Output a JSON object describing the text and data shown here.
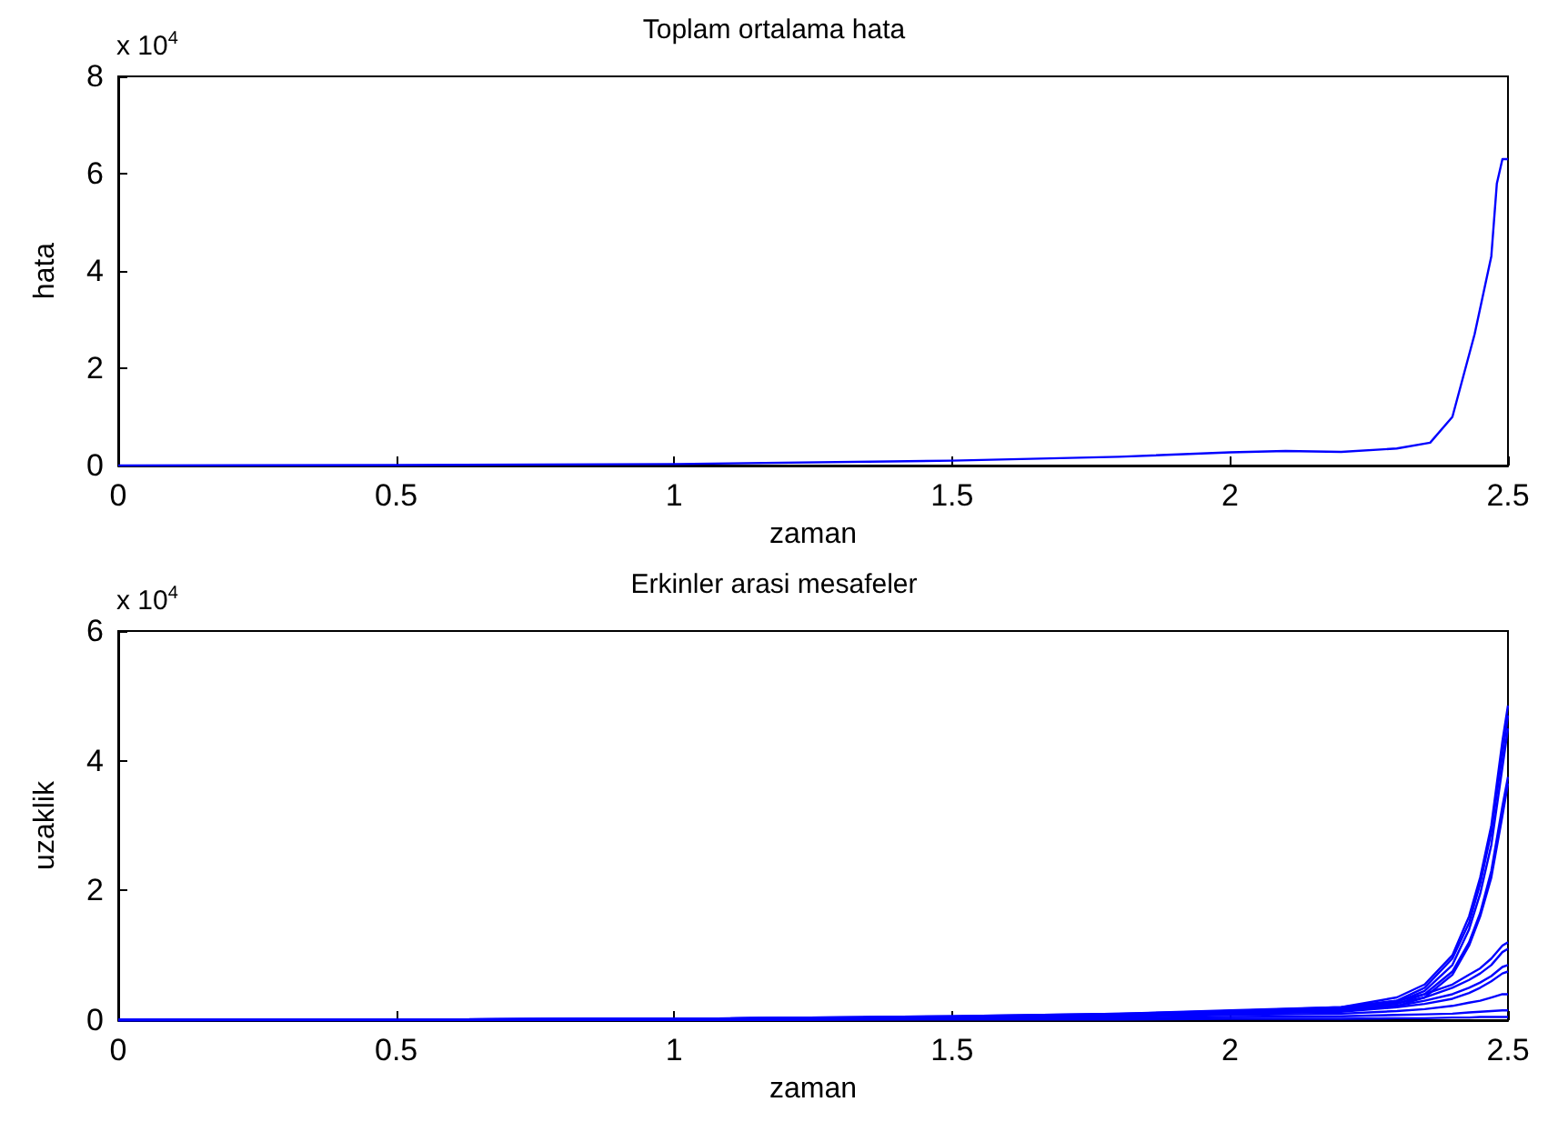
{
  "chart_data": [
    {
      "type": "line",
      "title": "Toplam ortalama hata",
      "xlabel": "zaman",
      "ylabel": "hata",
      "annotations": [
        "x 10$^{4}$"
      ],
      "x": [
        0,
        0.5,
        1,
        1.5,
        1.8,
        2,
        2.1,
        2.2,
        2.3,
        2.36,
        2.4,
        2.44,
        2.47,
        2.48,
        2.49,
        2.5
      ],
      "series": [
        {
          "color": "#0000ff",
          "values": [
            0,
            0.01,
            0.03,
            0.1,
            0.18,
            0.27,
            0.3,
            0.28,
            0.35,
            0.47,
            1.0,
            2.7,
            4.3,
            5.8,
            6.3,
            6.3
          ]
        }
      ],
      "xlim": [
        0,
        2.5
      ],
      "xticks": [
        0,
        0.5,
        1,
        1.5,
        2,
        2.5
      ],
      "ylim": [
        0,
        8
      ],
      "yticks": [
        0,
        2,
        4,
        6,
        8
      ]
    },
    {
      "type": "line",
      "title": "Erkinler arasi mesafeler",
      "xlabel": "zaman",
      "ylabel": "uzaklik",
      "annotations": [
        "x 10$^{4}$"
      ],
      "x": [
        0,
        0.5,
        1,
        1.5,
        1.8,
        2,
        2.2,
        2.3,
        2.35,
        2.4,
        2.43,
        2.45,
        2.47,
        2.49,
        2.5
      ],
      "series": [
        {
          "color": "#0000ff",
          "values": [
            0,
            0.01,
            0.02,
            0.06,
            0.1,
            0.15,
            0.2,
            0.35,
            0.55,
            1.0,
            1.6,
            2.2,
            3.0,
            4.3,
            4.85
          ]
        },
        {
          "color": "#0000ff",
          "values": [
            0,
            0.01,
            0.02,
            0.06,
            0.1,
            0.14,
            0.18,
            0.3,
            0.5,
            0.95,
            1.5,
            2.1,
            2.9,
            4.1,
            4.7
          ]
        },
        {
          "color": "#0000ff",
          "values": [
            0,
            0.01,
            0.02,
            0.05,
            0.09,
            0.13,
            0.17,
            0.28,
            0.45,
            0.85,
            1.4,
            1.95,
            2.7,
            3.9,
            4.5
          ]
        },
        {
          "color": "#0000ff",
          "values": [
            0,
            0.01,
            0.02,
            0.05,
            0.08,
            0.12,
            0.16,
            0.25,
            0.4,
            0.75,
            1.2,
            1.65,
            2.3,
            3.3,
            3.75
          ]
        },
        {
          "color": "#0000ff",
          "values": [
            0,
            0.01,
            0.02,
            0.05,
            0.08,
            0.12,
            0.15,
            0.22,
            0.35,
            0.7,
            1.15,
            1.6,
            2.2,
            3.15,
            3.65
          ]
        },
        {
          "color": "#0000ff",
          "values": [
            0,
            0.01,
            0.02,
            0.05,
            0.09,
            0.14,
            0.2,
            0.3,
            0.4,
            0.55,
            0.7,
            0.8,
            0.95,
            1.15,
            1.2
          ]
        },
        {
          "color": "#0000ff",
          "values": [
            0,
            0.01,
            0.02,
            0.05,
            0.08,
            0.13,
            0.18,
            0.26,
            0.35,
            0.5,
            0.62,
            0.72,
            0.85,
            1.05,
            1.1
          ]
        },
        {
          "color": "#0000ff",
          "values": [
            0,
            0.01,
            0.02,
            0.04,
            0.07,
            0.11,
            0.15,
            0.22,
            0.3,
            0.4,
            0.5,
            0.58,
            0.68,
            0.82,
            0.85
          ]
        },
        {
          "color": "#0000ff",
          "values": [
            0,
            0.01,
            0.01,
            0.04,
            0.06,
            0.1,
            0.13,
            0.2,
            0.25,
            0.33,
            0.42,
            0.5,
            0.6,
            0.72,
            0.75
          ]
        },
        {
          "color": "#0000ff",
          "values": [
            0,
            0,
            0.01,
            0.03,
            0.05,
            0.08,
            0.1,
            0.14,
            0.17,
            0.22,
            0.27,
            0.3,
            0.35,
            0.4,
            0.4
          ]
        },
        {
          "color": "#0000ff",
          "values": [
            0,
            0,
            0.01,
            0.02,
            0.03,
            0.05,
            0.06,
            0.08,
            0.09,
            0.1,
            0.12,
            0.13,
            0.14,
            0.15,
            0.15
          ]
        },
        {
          "color": "#0000ff",
          "values": [
            0,
            0,
            0,
            0.01,
            0.01,
            0.02,
            0.02,
            0.03,
            0.03,
            0.04,
            0.04,
            0.05,
            0.05,
            0.05,
            0.05
          ]
        }
      ],
      "xlim": [
        0,
        2.5
      ],
      "xticks": [
        0,
        0.5,
        1,
        1.5,
        2,
        2.5
      ],
      "ylim": [
        0,
        6
      ],
      "yticks": [
        0,
        2,
        4,
        6
      ]
    }
  ]
}
